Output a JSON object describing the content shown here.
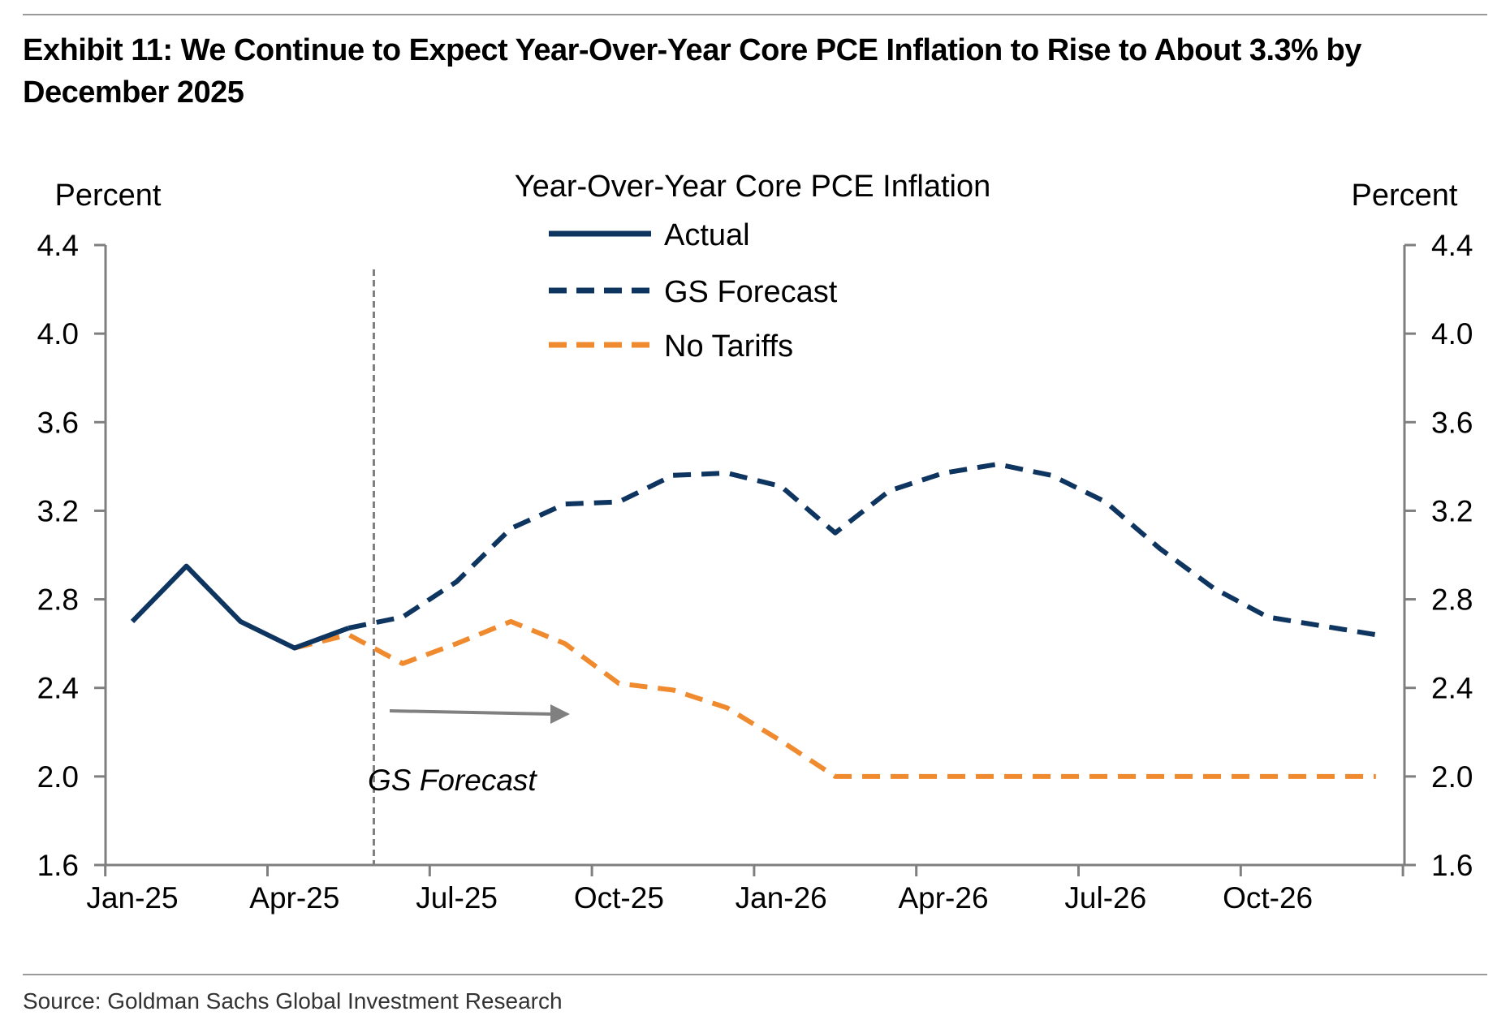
{
  "exhibit_title": "Exhibit 11: We Continue to Expect Year-Over-Year Core PCE Inflation to Rise to About 3.3% by December 2025",
  "source": "Source: Goldman Sachs Global Investment Research",
  "colors": {
    "actual": "#0e3460",
    "forecast": "#0e3460",
    "no_tariffs": "#f08a2e",
    "axis": "#7f7f7f",
    "divider": "#7f7f7f",
    "arrow": "#808080"
  },
  "chart_data": {
    "type": "line",
    "title": "Year-Over-Year Core PCE Inflation",
    "ylabel_left": "Percent",
    "ylabel_right": "Percent",
    "ylim": [
      1.6,
      4.4
    ],
    "yticks": [
      "1.6",
      "2.0",
      "2.4",
      "2.8",
      "3.2",
      "3.6",
      "4.0",
      "4.4"
    ],
    "xlim": [
      "2025-01",
      "2026-12"
    ],
    "x_tick_labels": [
      {
        "date": "2025-01",
        "label": "Jan-25"
      },
      {
        "date": "2025-04",
        "label": "Apr-25"
      },
      {
        "date": "2025-07",
        "label": "Jul-25"
      },
      {
        "date": "2025-10",
        "label": "Oct-25"
      },
      {
        "date": "2026-01",
        "label": "Jan-26"
      },
      {
        "date": "2026-04",
        "label": "Apr-26"
      },
      {
        "date": "2026-07",
        "label": "Jul-26"
      },
      {
        "date": "2026-10",
        "label": "Oct-26"
      }
    ],
    "legend": {
      "placement": "top-center",
      "entries": [
        "Actual",
        "GS Forecast",
        "No Tariffs"
      ]
    },
    "series": [
      {
        "name": "Actual",
        "style": "solid",
        "x": [
          "2025-01",
          "2025-02",
          "2025-03",
          "2025-04",
          "2025-05"
        ],
        "values": [
          2.7,
          2.95,
          2.7,
          2.58,
          2.67
        ]
      },
      {
        "name": "GS Forecast",
        "style": "dashed",
        "x": [
          "2025-05",
          "2025-06",
          "2025-07",
          "2025-08",
          "2025-09",
          "2025-10",
          "2025-11",
          "2025-12",
          "2026-01",
          "2026-02",
          "2026-03",
          "2026-04",
          "2026-05",
          "2026-06",
          "2026-07",
          "2026-08",
          "2026-09",
          "2026-10",
          "2026-11",
          "2026-12"
        ],
        "values": [
          2.67,
          2.72,
          2.88,
          3.12,
          3.23,
          3.24,
          3.36,
          3.37,
          3.31,
          3.1,
          3.29,
          3.37,
          3.41,
          3.36,
          3.24,
          3.03,
          2.85,
          2.72,
          2.68,
          2.64
        ]
      },
      {
        "name": "No Tariffs",
        "style": "dashed",
        "x": [
          "2025-04",
          "2025-05",
          "2025-06",
          "2025-07",
          "2025-08",
          "2025-09",
          "2025-10",
          "2025-11",
          "2025-12",
          "2026-01",
          "2026-02",
          "2026-03",
          "2026-04",
          "2026-05",
          "2026-06",
          "2026-07",
          "2026-08",
          "2026-09",
          "2026-10",
          "2026-11",
          "2026-12"
        ],
        "values": [
          2.58,
          2.64,
          2.51,
          2.6,
          2.7,
          2.6,
          2.42,
          2.39,
          2.31,
          2.16,
          2.0,
          2.0,
          2.0,
          2.0,
          2.0,
          2.0,
          2.0,
          2.0,
          2.0,
          2.0,
          2.0
        ]
      }
    ],
    "forecast_divider": {
      "date": "2025-05-15",
      "label": "GS Forecast"
    }
  }
}
